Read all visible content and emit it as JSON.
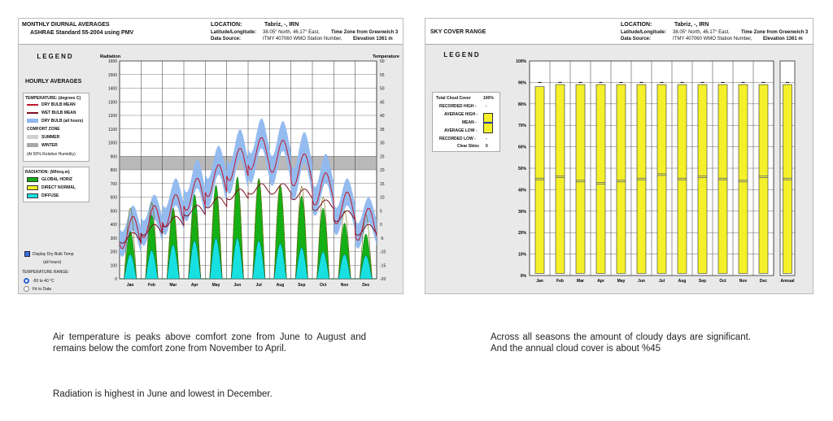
{
  "left": {
    "title1": "MONTHLY DIURNAL AVERAGES",
    "title2": "ASHRAE Standard 55-2004 using PMV",
    "location_label": "LOCATION:",
    "location_value": "Tabriz, -, IRN",
    "latlon_label": "Latitude/Longitude:",
    "latlon_value": "38.05° North, 46.17° East,",
    "timezone_text": "Time Zone from Greenwich 3",
    "source_label": "Data Source:",
    "source_value": "ITMY    407060 WMO Station Number,",
    "elevation_text": "Elevation 1361 m",
    "legend_title": "LEGEND",
    "hourly_title": "HOURLY AVERAGES",
    "temp_title": "TEMPERATURE: (degrees C)",
    "dry_bulb_mean": "DRY BULB MEAN",
    "wet_bulb_mean": "WET BULB MEAN",
    "dry_bulb_all": "DRY BULB (all hours)",
    "comfort_zone": "COMFORT ZONE",
    "summer": "SUMMER",
    "winter": "WINTER",
    "rh_note": "(At 50% Relative Humidity)",
    "radiation_title": "RADIATION: (Wh/sq.m)",
    "global_horiz": "GLOBAL HORIZ",
    "direct_normal": "DIRECT NORMAL",
    "diffuse": "DIFFUSE",
    "display_dry_bulb": "Display Dry Bulb Temp",
    "all_hours": "(all hours)",
    "temp_range_title": "TEMPERATURE RANGE:",
    "range_opt1": "-50 to 40 °C",
    "range_opt2": "Fit to Data",
    "colors": {
      "dry_bulb_mean": "#c0182a",
      "wet_bulb_mean": "#7a1020",
      "dry_bulb_band": "#8fb8ef",
      "global": "#15b015",
      "direct": "#f4f02a",
      "diffuse": "#19e0e0",
      "comfort": "#b9b9b9"
    }
  },
  "right": {
    "title": "SKY COVER RANGE",
    "location_label": "LOCATION:",
    "location_value": "Tabriz, -, IRN",
    "latlon_label": "Latitude/Longitude:",
    "latlon_value": "38.05° North, 46.17° East,",
    "timezone_text": "Time Zone from Greenwich 3",
    "source_label": "Data Source:",
    "source_value": "ITMY    407060 WMO Station Number,",
    "elevation_text": "Elevation 1361 m",
    "legend_title": "LEGEND",
    "total_cloud": "Total Cloud Cover",
    "total_cloud_pct": "100%",
    "recorded_high": "RECORDED HIGH -",
    "average_high": "AVERAGE HIGH -",
    "mean": "MEAN -",
    "average_low": "AVERAGE LOW -",
    "recorded_low": "RECORDED LOW -",
    "clear_skies": "Clear Skies",
    "clear_skies_pct": "0",
    "colors": {
      "bar": "#f4f02a",
      "mean_line": "#2a3a9a"
    }
  },
  "captions": {
    "left_p1": "Air temperature is peaks above comfort zone from June to August and remains below the comfort zone from November to April.",
    "left_p2": "Radiation is highest in June and lowest in December.",
    "right_p1": "Across all seasons the amount of cloudy days are significant. And the annual cloud cover is about %45"
  },
  "chart_data": [
    {
      "type": "line",
      "title": "MONTHLY DIURNAL AVERAGES",
      "ylabel": "Radiation",
      "y2label": "Temperature",
      "ylim": [
        0,
        1600
      ],
      "y2lim": [
        -20,
        60
      ],
      "yticks": [
        "0",
        "100",
        "200",
        "300",
        "400",
        "500",
        "600",
        "700",
        "800",
        "900",
        "1000",
        "1100",
        "1200",
        "1300",
        "1400",
        "1500",
        "1600"
      ],
      "y2ticks": [
        "-20",
        "-15",
        "-10",
        "-5",
        "0",
        "5",
        "10",
        "15",
        "20",
        "25",
        "30",
        "35",
        "40",
        "45",
        "50",
        "55",
        "60"
      ],
      "categories": [
        "Jan",
        "Feb",
        "Mar",
        "Apr",
        "May",
        "Jun",
        "Jul",
        "Aug",
        "Sep",
        "Oct",
        "Nov",
        "Dec"
      ],
      "comfort_zone": {
        "summer": [
          20,
          25
        ],
        "winter": [
          20,
          25
        ]
      },
      "series": [
        {
          "name": "GLOBAL HORIZ",
          "values": [
            350,
            470,
            520,
            620,
            690,
            750,
            740,
            690,
            610,
            520,
            410,
            330
          ]
        },
        {
          "name": "DIRECT NORMAL",
          "values": [
            520,
            560,
            500,
            480,
            600,
            700,
            720,
            690,
            680,
            600,
            500,
            470
          ]
        },
        {
          "name": "DIFFUSE",
          "values": [
            180,
            210,
            250,
            280,
            300,
            300,
            280,
            260,
            230,
            200,
            180,
            170
          ]
        },
        {
          "name": "DRY BULB MEAN",
          "values": [
            -3,
            1,
            5,
            11,
            16,
            22,
            26,
            25,
            20,
            13,
            6,
            0
          ]
        },
        {
          "name": "WET BULB MEAN",
          "values": [
            -5,
            -2,
            1,
            5,
            8,
            11,
            13,
            13,
            11,
            7,
            3,
            -2
          ]
        },
        {
          "name": "DRY BULB (all hours)",
          "values": [
            [
              -10,
              5
            ],
            [
              -6,
              9
            ],
            [
              -2,
              15
            ],
            [
              3,
              22
            ],
            [
              8,
              27
            ],
            [
              13,
              33
            ],
            [
              17,
              37
            ],
            [
              16,
              36
            ],
            [
              11,
              32
            ],
            [
              5,
              24
            ],
            [
              -2,
              15
            ],
            [
              -7,
              8
            ]
          ]
        }
      ]
    },
    {
      "type": "bar",
      "title": "SKY COVER RANGE",
      "ylim": [
        0,
        100
      ],
      "yticks": [
        "0%",
        "10%",
        "20%",
        "30%",
        "40%",
        "50%",
        "60%",
        "70%",
        "80%",
        "90%",
        "100%"
      ],
      "categories": [
        "Jan",
        "Feb",
        "Mar",
        "Apr",
        "May",
        "Jun",
        "Jul",
        "Aug",
        "Sep",
        "Oct",
        "Nov",
        "Dec",
        "Annual"
      ],
      "series": [
        {
          "name": "RECORDED HIGH",
          "values": [
            90,
            90,
            90,
            90,
            90,
            90,
            90,
            90,
            90,
            90,
            90,
            90,
            90
          ]
        },
        {
          "name": "AVERAGE HIGH",
          "values": [
            88,
            89,
            89,
            89,
            89,
            89,
            89,
            89,
            89,
            89,
            89,
            89,
            89
          ]
        },
        {
          "name": "MEAN",
          "values": [
            45,
            46,
            44,
            43,
            44,
            45,
            47,
            45,
            46,
            45,
            44,
            46,
            45
          ]
        },
        {
          "name": "AVERAGE LOW",
          "values": [
            1,
            1,
            1,
            1,
            1,
            1,
            1,
            1,
            1,
            1,
            1,
            1,
            1
          ]
        },
        {
          "name": "RECORDED LOW",
          "values": [
            0,
            0,
            0,
            0,
            0,
            0,
            0,
            0,
            0,
            0,
            0,
            0,
            0
          ]
        }
      ]
    }
  ]
}
